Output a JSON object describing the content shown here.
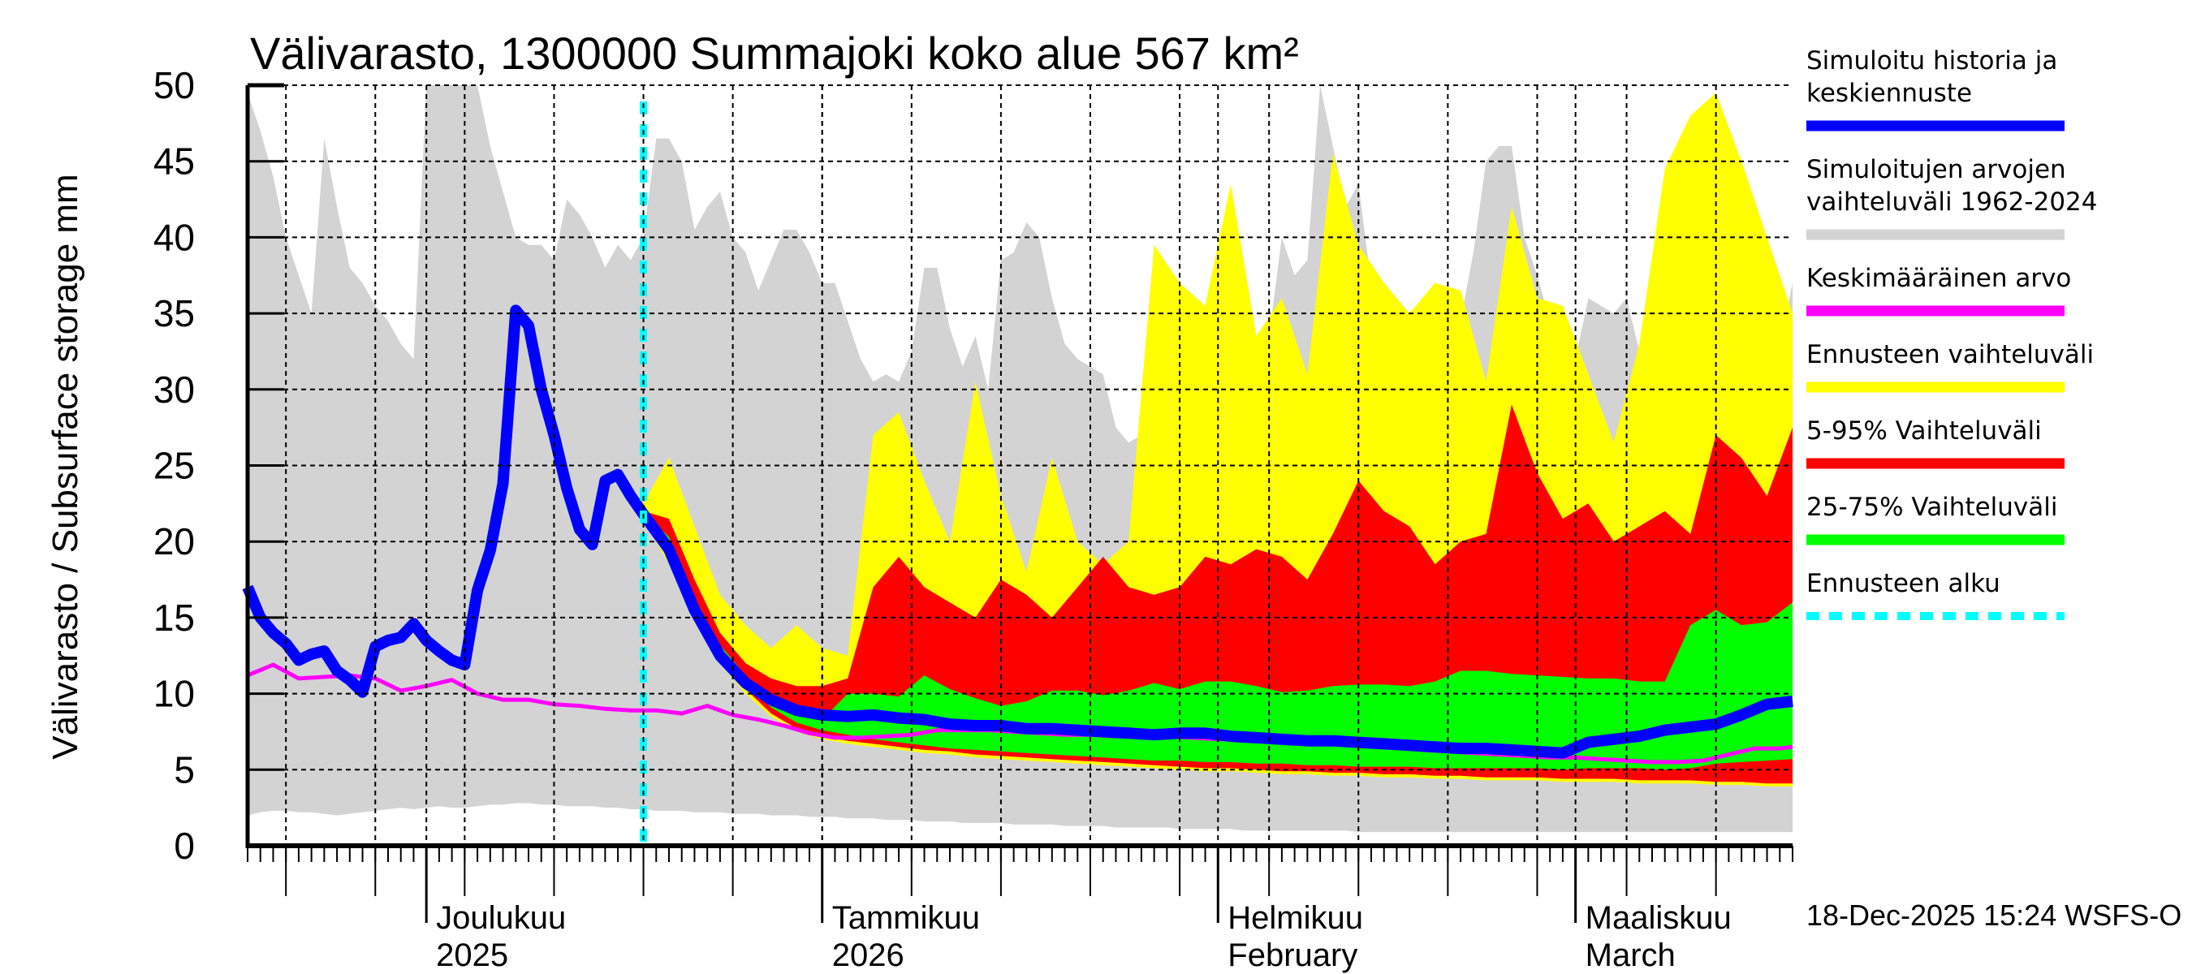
{
  "chart_data": {
    "type": "area",
    "title": "Välivarasto, 1300000 Summajoki koko alue 567 km²",
    "ylabel": "Välivarasto / Subsurface storage  mm",
    "xlabel": "",
    "ylim": [
      0,
      50
    ],
    "yticks": [
      0,
      5,
      10,
      15,
      20,
      25,
      30,
      35,
      40,
      45,
      50
    ],
    "x_unit": "days since 2025-11-17",
    "xlim": [
      0,
      121
    ],
    "grid": true,
    "month_labels": [
      {
        "day": 14,
        "line1": "Joulukuu",
        "line2": "2025"
      },
      {
        "day": 45,
        "line1": "Tammikuu",
        "line2": "2026"
      },
      {
        "day": 76,
        "line1": "Helmikuu",
        "line2": "February"
      },
      {
        "day": 104,
        "line1": "Maaliskuu",
        "line2": "March"
      }
    ],
    "forecast_start_day": 31,
    "timestamp": "18-Dec-2025 15:24 WSFS-O",
    "legend_position": "right",
    "legend": [
      {
        "label_lines": [
          "Simuloitu historia ja",
          "keskiennuste"
        ],
        "color": "#0000ff",
        "style": "solid"
      },
      {
        "label_lines": [
          "Simuloitujen arvojen",
          "vaihteluväli 1962-2024"
        ],
        "color": "#d3d3d3",
        "style": "solid"
      },
      {
        "label_lines": [
          "Keskimääräinen arvo"
        ],
        "color": "#ff00ff",
        "style": "solid"
      },
      {
        "label_lines": [
          "Ennusteen vaihteluväli"
        ],
        "color": "#ffff00",
        "style": "solid"
      },
      {
        "label_lines": [
          "5-95% Vaihteluväli"
        ],
        "color": "#ff0000",
        "style": "solid"
      },
      {
        "label_lines": [
          "25-75% Vaihteluväli"
        ],
        "color": "#00ff00",
        "style": "solid"
      },
      {
        "label_lines": [
          "Ennusteen alku"
        ],
        "color": "#00ffff",
        "style": "dashed"
      }
    ],
    "series": [
      {
        "name": "Simuloitujen arvojen vaihteluväli 1962-2024",
        "kind": "band",
        "color": "#d3d3d3",
        "x": [
          0,
          1,
          2,
          3,
          4,
          5,
          6,
          7,
          8,
          9,
          10,
          11,
          12,
          13,
          14,
          15,
          16,
          17,
          18,
          19,
          20,
          21,
          22,
          23,
          24,
          25,
          26,
          27,
          28,
          29,
          30,
          31,
          32,
          33,
          34,
          35,
          36,
          37,
          38,
          39,
          40,
          41,
          42,
          43,
          44,
          45,
          46,
          47,
          48,
          49,
          50,
          51,
          52,
          53,
          54,
          55,
          56,
          57,
          58,
          59,
          60,
          61,
          62,
          63,
          64,
          65,
          66,
          67,
          68,
          69,
          70,
          71,
          72,
          73,
          74,
          75,
          76,
          77,
          78,
          79,
          80,
          81,
          82,
          83,
          84,
          85,
          86,
          87,
          88,
          89,
          90,
          91,
          92,
          93,
          94,
          95,
          96,
          97,
          98,
          99,
          100,
          101,
          102,
          103,
          104,
          105,
          106,
          107,
          108,
          109,
          110,
          111,
          112,
          113,
          114,
          115,
          116,
          117,
          118,
          119,
          120,
          121
        ],
        "upper": [
          49.5,
          47,
          44,
          40,
          37.5,
          35,
          46.5,
          42,
          38,
          37,
          35.5,
          34.5,
          33,
          32,
          50,
          50,
          50,
          50,
          50,
          46,
          43,
          40,
          39.5,
          39.5,
          38.5,
          42.5,
          41.5,
          40,
          38,
          39.5,
          38.5,
          40,
          46.5,
          46.5,
          45,
          40.5,
          42,
          43,
          40,
          39,
          36.5,
          38.5,
          40.5,
          40.5,
          39,
          37,
          37,
          34.5,
          32,
          30.5,
          31,
          30.5,
          32.5,
          38,
          38,
          34,
          31.5,
          33.5,
          30,
          38.5,
          39,
          41,
          40,
          36,
          33,
          32,
          31.5,
          31,
          27.5,
          26.5,
          27,
          25.5,
          26.5,
          26.5,
          23.5,
          24.5,
          26.5,
          22,
          21.5,
          26.5,
          33.5,
          40,
          37.5,
          38.5,
          50,
          46,
          42,
          43.5,
          37,
          34.5,
          33,
          31.5,
          30,
          26.5,
          28.5,
          34.5,
          39,
          45,
          46,
          46,
          40,
          37.5,
          34.5,
          35.5,
          32,
          36,
          35.5,
          35,
          36,
          32.5,
          31,
          28.5,
          45.5,
          43,
          38.5,
          37,
          36,
          35,
          34,
          33.5,
          33,
          37
        ],
        "lower": [
          2.0,
          2.2,
          2.3,
          2.3,
          2.2,
          2.2,
          2.1,
          2.0,
          2.1,
          2.2,
          2.3,
          2.4,
          2.5,
          2.4,
          2.5,
          2.6,
          2.5,
          2.5,
          2.6,
          2.7,
          2.7,
          2.8,
          2.8,
          2.7,
          2.7,
          2.6,
          2.6,
          2.6,
          2.5,
          2.5,
          2.4,
          2.4,
          2.3,
          2.3,
          2.3,
          2.2,
          2.2,
          2.2,
          2.1,
          2.1,
          2.1,
          2.0,
          2.0,
          2.0,
          1.9,
          1.9,
          1.9,
          1.8,
          1.8,
          1.8,
          1.7,
          1.7,
          1.7,
          1.6,
          1.6,
          1.6,
          1.5,
          1.5,
          1.5,
          1.5,
          1.4,
          1.4,
          1.4,
          1.4,
          1.3,
          1.3,
          1.3,
          1.3,
          1.2,
          1.2,
          1.2,
          1.2,
          1.2,
          1.1,
          1.1,
          1.1,
          1.1,
          1.1,
          1.0,
          1.0,
          1.0,
          1.0,
          1.0,
          1.0,
          1.0,
          1.0,
          1.0,
          0.9,
          0.9,
          0.9,
          0.9,
          0.9,
          0.9,
          0.9,
          0.9,
          0.9,
          0.9,
          0.9,
          0.9,
          0.9,
          0.9,
          0.9,
          0.9,
          0.9,
          0.9,
          0.9,
          0.9,
          0.9,
          0.9,
          0.9,
          0.9,
          0.9,
          0.9,
          0.9,
          0.9,
          0.9,
          0.9,
          0.9,
          0.9,
          0.9,
          0.9,
          0.9
        ]
      },
      {
        "name": "Ennusteen vaihteluväli",
        "kind": "band",
        "color": "#ffff00",
        "x": [
          31,
          33,
          35,
          37,
          39,
          41,
          43,
          45,
          47,
          49,
          51,
          53,
          55,
          57,
          59,
          61,
          63,
          65,
          67,
          69,
          71,
          73,
          75,
          77,
          79,
          81,
          83,
          85,
          87,
          89,
          91,
          93,
          95,
          97,
          99,
          101,
          103,
          105,
          107,
          109,
          111,
          113,
          115,
          117,
          119,
          121
        ],
        "upper": [
          22.5,
          25.5,
          21,
          16.5,
          14.5,
          13,
          14.5,
          13,
          12.5,
          27,
          28.5,
          24,
          20,
          30.5,
          23,
          18,
          25.5,
          20,
          18.5,
          20,
          39.5,
          37,
          35.5,
          43.5,
          33.5,
          36,
          31,
          45.5,
          39.5,
          37,
          35,
          37,
          36.5,
          30.5,
          42,
          36,
          35.5,
          31,
          26.5,
          33,
          44.5,
          48,
          49.5,
          45,
          40,
          35
        ],
        "lower": [
          21.5,
          18.5,
          15,
          12,
          10,
          8.5,
          7.5,
          7,
          6.7,
          6.5,
          6.3,
          6.1,
          6.0,
          5.8,
          5.7,
          5.6,
          5.5,
          5.4,
          5.3,
          5.2,
          5.1,
          5.0,
          4.9,
          4.9,
          4.8,
          4.7,
          4.7,
          4.6,
          4.6,
          4.5,
          4.5,
          4.4,
          4.4,
          4.3,
          4.3,
          4.3,
          4.2,
          4.2,
          4.2,
          4.1,
          4.1,
          4.1,
          4.0,
          4.0,
          3.9,
          3.9
        ]
      },
      {
        "name": "5-95% Vaihteluväli",
        "kind": "band",
        "color": "#ff0000",
        "x": [
          31,
          33,
          35,
          37,
          39,
          41,
          43,
          45,
          47,
          49,
          51,
          53,
          55,
          57,
          59,
          61,
          63,
          65,
          67,
          69,
          71,
          73,
          75,
          77,
          79,
          81,
          83,
          85,
          87,
          89,
          91,
          93,
          95,
          97,
          99,
          101,
          103,
          105,
          107,
          109,
          111,
          113,
          115,
          117,
          119,
          121
        ],
        "upper": [
          22,
          21.5,
          17.5,
          14,
          12,
          11,
          10.5,
          10.5,
          11,
          17,
          19,
          17,
          16,
          15,
          17.5,
          16.5,
          15,
          17,
          19,
          17,
          16.5,
          17,
          19,
          18.5,
          19.5,
          19,
          17.5,
          20.5,
          24,
          22,
          21,
          18.5,
          20,
          20.5,
          29,
          24.5,
          21.5,
          22.5,
          20,
          21,
          22,
          20.5,
          27,
          25.5,
          23,
          27.5
        ],
        "lower": [
          21.8,
          19,
          15.2,
          12.2,
          10.3,
          8.7,
          7.7,
          7.2,
          6.9,
          6.7,
          6.5,
          6.3,
          6.2,
          6.0,
          5.9,
          5.8,
          5.7,
          5.6,
          5.5,
          5.4,
          5.3,
          5.2,
          5.1,
          5.1,
          5.0,
          4.9,
          4.9,
          4.8,
          4.8,
          4.7,
          4.7,
          4.6,
          4.6,
          4.5,
          4.5,
          4.5,
          4.4,
          4.4,
          4.4,
          4.3,
          4.3,
          4.3,
          4.2,
          4.2,
          4.1,
          4.1
        ]
      },
      {
        "name": "25-75% Vaihteluväli",
        "kind": "band",
        "color": "#00ff00",
        "x": [
          31,
          33,
          35,
          37,
          39,
          41,
          43,
          45,
          47,
          49,
          51,
          53,
          55,
          57,
          59,
          61,
          63,
          65,
          67,
          69,
          71,
          73,
          75,
          77,
          79,
          81,
          83,
          85,
          87,
          89,
          91,
          93,
          95,
          97,
          99,
          101,
          103,
          105,
          107,
          109,
          111,
          113,
          115,
          117,
          119,
          121
        ],
        "upper": [
          22,
          20.3,
          16.3,
          13.2,
          11.2,
          9.7,
          8.8,
          8.3,
          10,
          10,
          9.8,
          11.2,
          10.3,
          9.7,
          9.2,
          9.5,
          10.2,
          10.2,
          9.9,
          10.2,
          10.7,
          10.3,
          10.8,
          10.8,
          10.5,
          10.1,
          10.2,
          10.5,
          10.6,
          10.6,
          10.5,
          10.8,
          11.5,
          11.5,
          11.3,
          11.2,
          11.1,
          11.0,
          11.0,
          10.8,
          10.8,
          14.5,
          15.5,
          14.5,
          14.7,
          16
        ],
        "lower": [
          21.9,
          19.8,
          15.8,
          12.7,
          10.7,
          9.1,
          8.1,
          7.6,
          7.3,
          7.0,
          6.8,
          6.6,
          6.4,
          6.3,
          6.2,
          6.1,
          6.0,
          5.9,
          5.8,
          5.7,
          5.6,
          5.6,
          5.5,
          5.5,
          5.4,
          5.4,
          5.3,
          5.3,
          5.2,
          5.2,
          5.2,
          5.1,
          5.1,
          5.1,
          5.1,
          5.1,
          5.0,
          5.1,
          5.1,
          5.1,
          5.0,
          5.1,
          5.4,
          5.5,
          5.6,
          5.7
        ]
      },
      {
        "name": "Keskimääräinen arvo",
        "kind": "line",
        "color": "#ff00ff",
        "x": [
          0,
          2,
          4,
          6,
          8,
          10,
          12,
          14,
          16,
          18,
          20,
          22,
          24,
          26,
          28,
          30,
          32,
          34,
          36,
          38,
          40,
          42,
          44,
          46,
          48,
          50,
          52,
          54,
          56,
          58,
          60,
          62,
          64,
          66,
          68,
          70,
          72,
          74,
          76,
          78,
          80,
          82,
          84,
          86,
          88,
          90,
          92,
          94,
          96,
          98,
          100,
          102,
          104,
          106,
          108,
          110,
          112,
          114,
          116,
          118,
          120,
          121
        ],
        "y": [
          11.2,
          11.9,
          11.0,
          11.1,
          11.2,
          11.0,
          10.2,
          10.5,
          10.9,
          10.0,
          9.6,
          9.6,
          9.3,
          9.2,
          9.0,
          8.9,
          8.9,
          8.7,
          9.2,
          8.6,
          8.3,
          7.9,
          7.4,
          7.1,
          7.1,
          7.2,
          7.3,
          7.6,
          7.6,
          7.6,
          7.5,
          7.4,
          7.3,
          7.3,
          7.2,
          7.3,
          7.2,
          7.1,
          7.0,
          7.0,
          6.9,
          6.8,
          6.7,
          6.7,
          6.6,
          6.5,
          6.3,
          6.2,
          6.1,
          6.0,
          5.9,
          5.8,
          5.8,
          5.7,
          5.6,
          5.5,
          5.5,
          5.6,
          6.0,
          6.4,
          6.4,
          6.5
        ]
      },
      {
        "name": "Simuloitu historia ja keskiennuste",
        "kind": "line",
        "color": "#0000ff",
        "x": [
          0,
          1,
          2,
          3,
          4,
          5,
          6,
          7,
          8,
          9,
          10,
          11,
          12,
          13,
          14,
          15,
          16,
          17,
          18,
          19,
          20,
          21,
          22,
          23,
          24,
          25,
          26,
          27,
          28,
          29,
          30,
          31,
          33,
          35,
          37,
          39,
          41,
          43,
          45,
          47,
          49,
          51,
          53,
          55,
          57,
          59,
          61,
          63,
          65,
          67,
          69,
          71,
          73,
          75,
          77,
          79,
          81,
          83,
          85,
          87,
          89,
          91,
          93,
          95,
          97,
          99,
          101,
          103,
          105,
          107,
          109,
          111,
          113,
          115,
          117,
          119,
          121
        ],
        "y": [
          17,
          15,
          14,
          13.3,
          12.2,
          12.6,
          12.8,
          11.5,
          10.9,
          10.1,
          13.1,
          13.5,
          13.7,
          14.6,
          13.5,
          12.8,
          12.2,
          11.9,
          16.8,
          19.4,
          23.8,
          35.2,
          34.2,
          30,
          27,
          23.5,
          20.8,
          19.8,
          24,
          24.4,
          23,
          21.8,
          19.5,
          15.5,
          12.5,
          10.7,
          9.6,
          8.9,
          8.6,
          8.5,
          8.6,
          8.4,
          8.3,
          8.0,
          7.9,
          7.9,
          7.7,
          7.7,
          7.6,
          7.5,
          7.4,
          7.3,
          7.4,
          7.4,
          7.2,
          7.1,
          7.0,
          6.9,
          6.9,
          6.8,
          6.7,
          6.6,
          6.5,
          6.4,
          6.4,
          6.3,
          6.2,
          6.1,
          6.8,
          7.0,
          7.2,
          7.6,
          7.8,
          8.0,
          8.6,
          9.3,
          9.5
        ]
      }
    ]
  }
}
